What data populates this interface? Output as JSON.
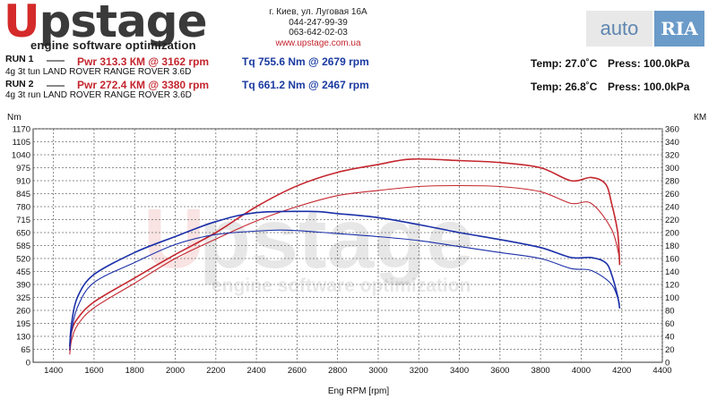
{
  "header": {
    "logo_letter": "U",
    "logo_rest": "pstage",
    "logo_tagline": "engine software optimization",
    "contact": {
      "address": "г. Киев, ул. Луговая 16А",
      "phone1": "044-247-99-39",
      "phone2": "063-642-02-03",
      "website": "www.upstage.com.ua"
    },
    "watermark_auto": "auto",
    "watermark_ria": "RIA"
  },
  "runs": [
    {
      "label": "RUN 1",
      "power": "Pwr  313.3 КМ @ 3162 rpm",
      "torque": "Tq 755.6 Nm @ 2679 rpm",
      "vehicle": "4g 3t tun LAND ROVER RANGE ROVER 3.6D",
      "temp": "Temp: 27.0˚C",
      "press": "Press: 100.0kPa"
    },
    {
      "label": "RUN 2",
      "power": "Pwr  272.4 КМ @ 3380 rpm",
      "torque": "Tq 661.2 Nm @ 2467 rpm",
      "vehicle": "4g 3t run LAND ROVER RANGE ROVER 3.6D",
      "temp": "Temp: 26.8˚C",
      "press": "Press: 100.0kPa"
    }
  ],
  "colors": {
    "power": "#c4262e",
    "torque": "#1a2fa8",
    "grid": "#6f6f6f"
  },
  "chart_data": {
    "type": "line",
    "xlabel": "Eng RPM [rpm]",
    "ylabel_left": "Nm",
    "ylabel_right": "КМ",
    "xlim": [
      1300,
      4400
    ],
    "ylim_left": [
      0,
      1170
    ],
    "ylim_right": [
      0,
      360
    ],
    "x_ticks": [
      1400,
      1600,
      1800,
      2000,
      2200,
      2400,
      2600,
      2800,
      3000,
      3200,
      3400,
      3600,
      3800,
      4000,
      4200,
      4400
    ],
    "y_ticks_left": [
      65,
      130,
      195,
      260,
      325,
      390,
      455,
      520,
      585,
      650,
      715,
      780,
      845,
      910,
      975,
      1040,
      1105,
      1170
    ],
    "y_ticks_right": [
      20,
      40,
      60,
      80,
      100,
      120,
      140,
      160,
      180,
      200,
      220,
      240,
      260,
      280,
      300,
      320,
      340,
      360
    ],
    "grid": true,
    "series": [
      {
        "name": "RUN 1",
        "quantity": "power",
        "axis": "right",
        "x": [
          1480,
          1490,
          1520,
          1600,
          1800,
          2000,
          2200,
          2400,
          2600,
          2800,
          3000,
          3162,
          3400,
          3600,
          3800,
          3950,
          4050,
          4120,
          4150,
          4180,
          4190
        ],
        "y": [
          18,
          48,
          68,
          93,
          130,
          166,
          200,
          240,
          272,
          293,
          305,
          313.3,
          311,
          308,
          300,
          280,
          285,
          275,
          245,
          200,
          150
        ]
      },
      {
        "name": "RUN 2",
        "quantity": "power",
        "axis": "right",
        "x": [
          1480,
          1490,
          1520,
          1600,
          1800,
          2000,
          2200,
          2400,
          2600,
          2800,
          3000,
          3200,
          3380,
          3600,
          3800,
          3950,
          4050,
          4150,
          4190
        ],
        "y": [
          12,
          35,
          58,
          84,
          122,
          160,
          190,
          218,
          240,
          257,
          265,
          271,
          272.4,
          271,
          263,
          245,
          245,
          205,
          160
        ]
      },
      {
        "name": "RUN 1",
        "quantity": "torque",
        "axis": "left",
        "x": [
          1480,
          1490,
          1520,
          1600,
          1800,
          2000,
          2200,
          2400,
          2679,
          2800,
          3000,
          3200,
          3400,
          3600,
          3800,
          3950,
          4050,
          4120,
          4150,
          4180,
          4190
        ],
        "y": [
          80,
          200,
          330,
          440,
          550,
          630,
          705,
          750,
          755.6,
          745,
          725,
          690,
          650,
          615,
          575,
          525,
          525,
          500,
          440,
          330,
          270
        ]
      },
      {
        "name": "RUN 2",
        "quantity": "torque",
        "axis": "left",
        "x": [
          1480,
          1490,
          1520,
          1600,
          1800,
          2000,
          2200,
          2467,
          2600,
          2800,
          3000,
          3200,
          3400,
          3600,
          3800,
          3950,
          4050,
          4150,
          4190
        ],
        "y": [
          60,
          160,
          280,
          400,
          500,
          590,
          640,
          661.2,
          660,
          645,
          630,
          610,
          580,
          550,
          520,
          470,
          460,
          390,
          290
        ]
      }
    ]
  }
}
